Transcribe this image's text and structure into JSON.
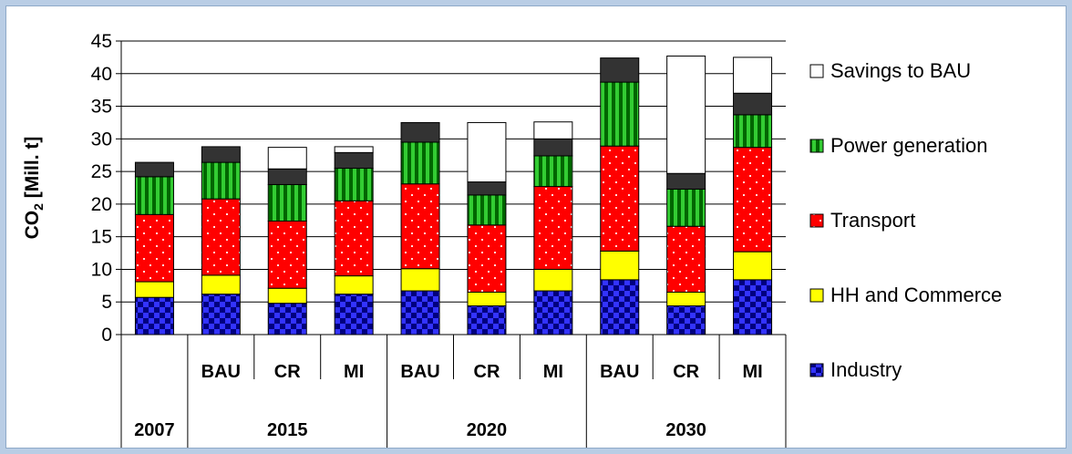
{
  "chart_data": {
    "type": "bar",
    "stacked": true,
    "ylabel": "CO₂ [Mill. t]",
    "ylim": [
      0,
      45
    ],
    "yticks": [
      0,
      5,
      10,
      15,
      20,
      25,
      30,
      35,
      40,
      45
    ],
    "groups": [
      {
        "label": "2007",
        "scenarios": [
          ""
        ]
      },
      {
        "label": "2015",
        "scenarios": [
          "BAU",
          "CR",
          "MI"
        ]
      },
      {
        "label": "2020",
        "scenarios": [
          "BAU",
          "CR",
          "MI"
        ]
      },
      {
        "label": "2030",
        "scenarios": [
          "BAU",
          "CR",
          "MI"
        ]
      }
    ],
    "series": [
      {
        "name": "Industry",
        "pattern": "checker",
        "color": "#3333ff",
        "values": [
          5.7,
          6.2,
          4.8,
          6.2,
          6.7,
          4.4,
          6.7,
          8.4,
          4.4,
          8.4
        ]
      },
      {
        "name": "HH and Commerce",
        "pattern": "solid",
        "color": "#ffff00",
        "values": [
          2.4,
          2.9,
          2.3,
          2.8,
          3.4,
          2.1,
          3.3,
          4.4,
          2.1,
          4.3
        ]
      },
      {
        "name": "Transport",
        "pattern": "dots",
        "color": "#ff0000",
        "values": [
          10.3,
          11.7,
          10.3,
          11.5,
          13.0,
          10.3,
          12.7,
          16.1,
          10.1,
          16.0
        ]
      },
      {
        "name": "Power generation",
        "pattern": "stripes",
        "color": "#33cc33",
        "values": [
          5.8,
          5.6,
          5.6,
          5.0,
          6.4,
          4.6,
          4.7,
          9.8,
          5.7,
          5.0
        ]
      },
      {
        "name": "",
        "pattern": "solid",
        "color": "#333333",
        "values": [
          2.2,
          2.4,
          2.4,
          2.4,
          3.0,
          2.0,
          2.6,
          3.7,
          2.4,
          3.3
        ]
      },
      {
        "name": "Savings to BAU",
        "pattern": "solid",
        "color": "#ffffff",
        "values": [
          0,
          0,
          3.3,
          0.9,
          0,
          9.1,
          2.6,
          0,
          18.0,
          5.5
        ]
      }
    ],
    "legend": [
      "Savings to BAU",
      "Power generation",
      "Transport",
      "HH and Commerce",
      "Industry"
    ],
    "legend_position": "right",
    "grid": "horizontal"
  }
}
